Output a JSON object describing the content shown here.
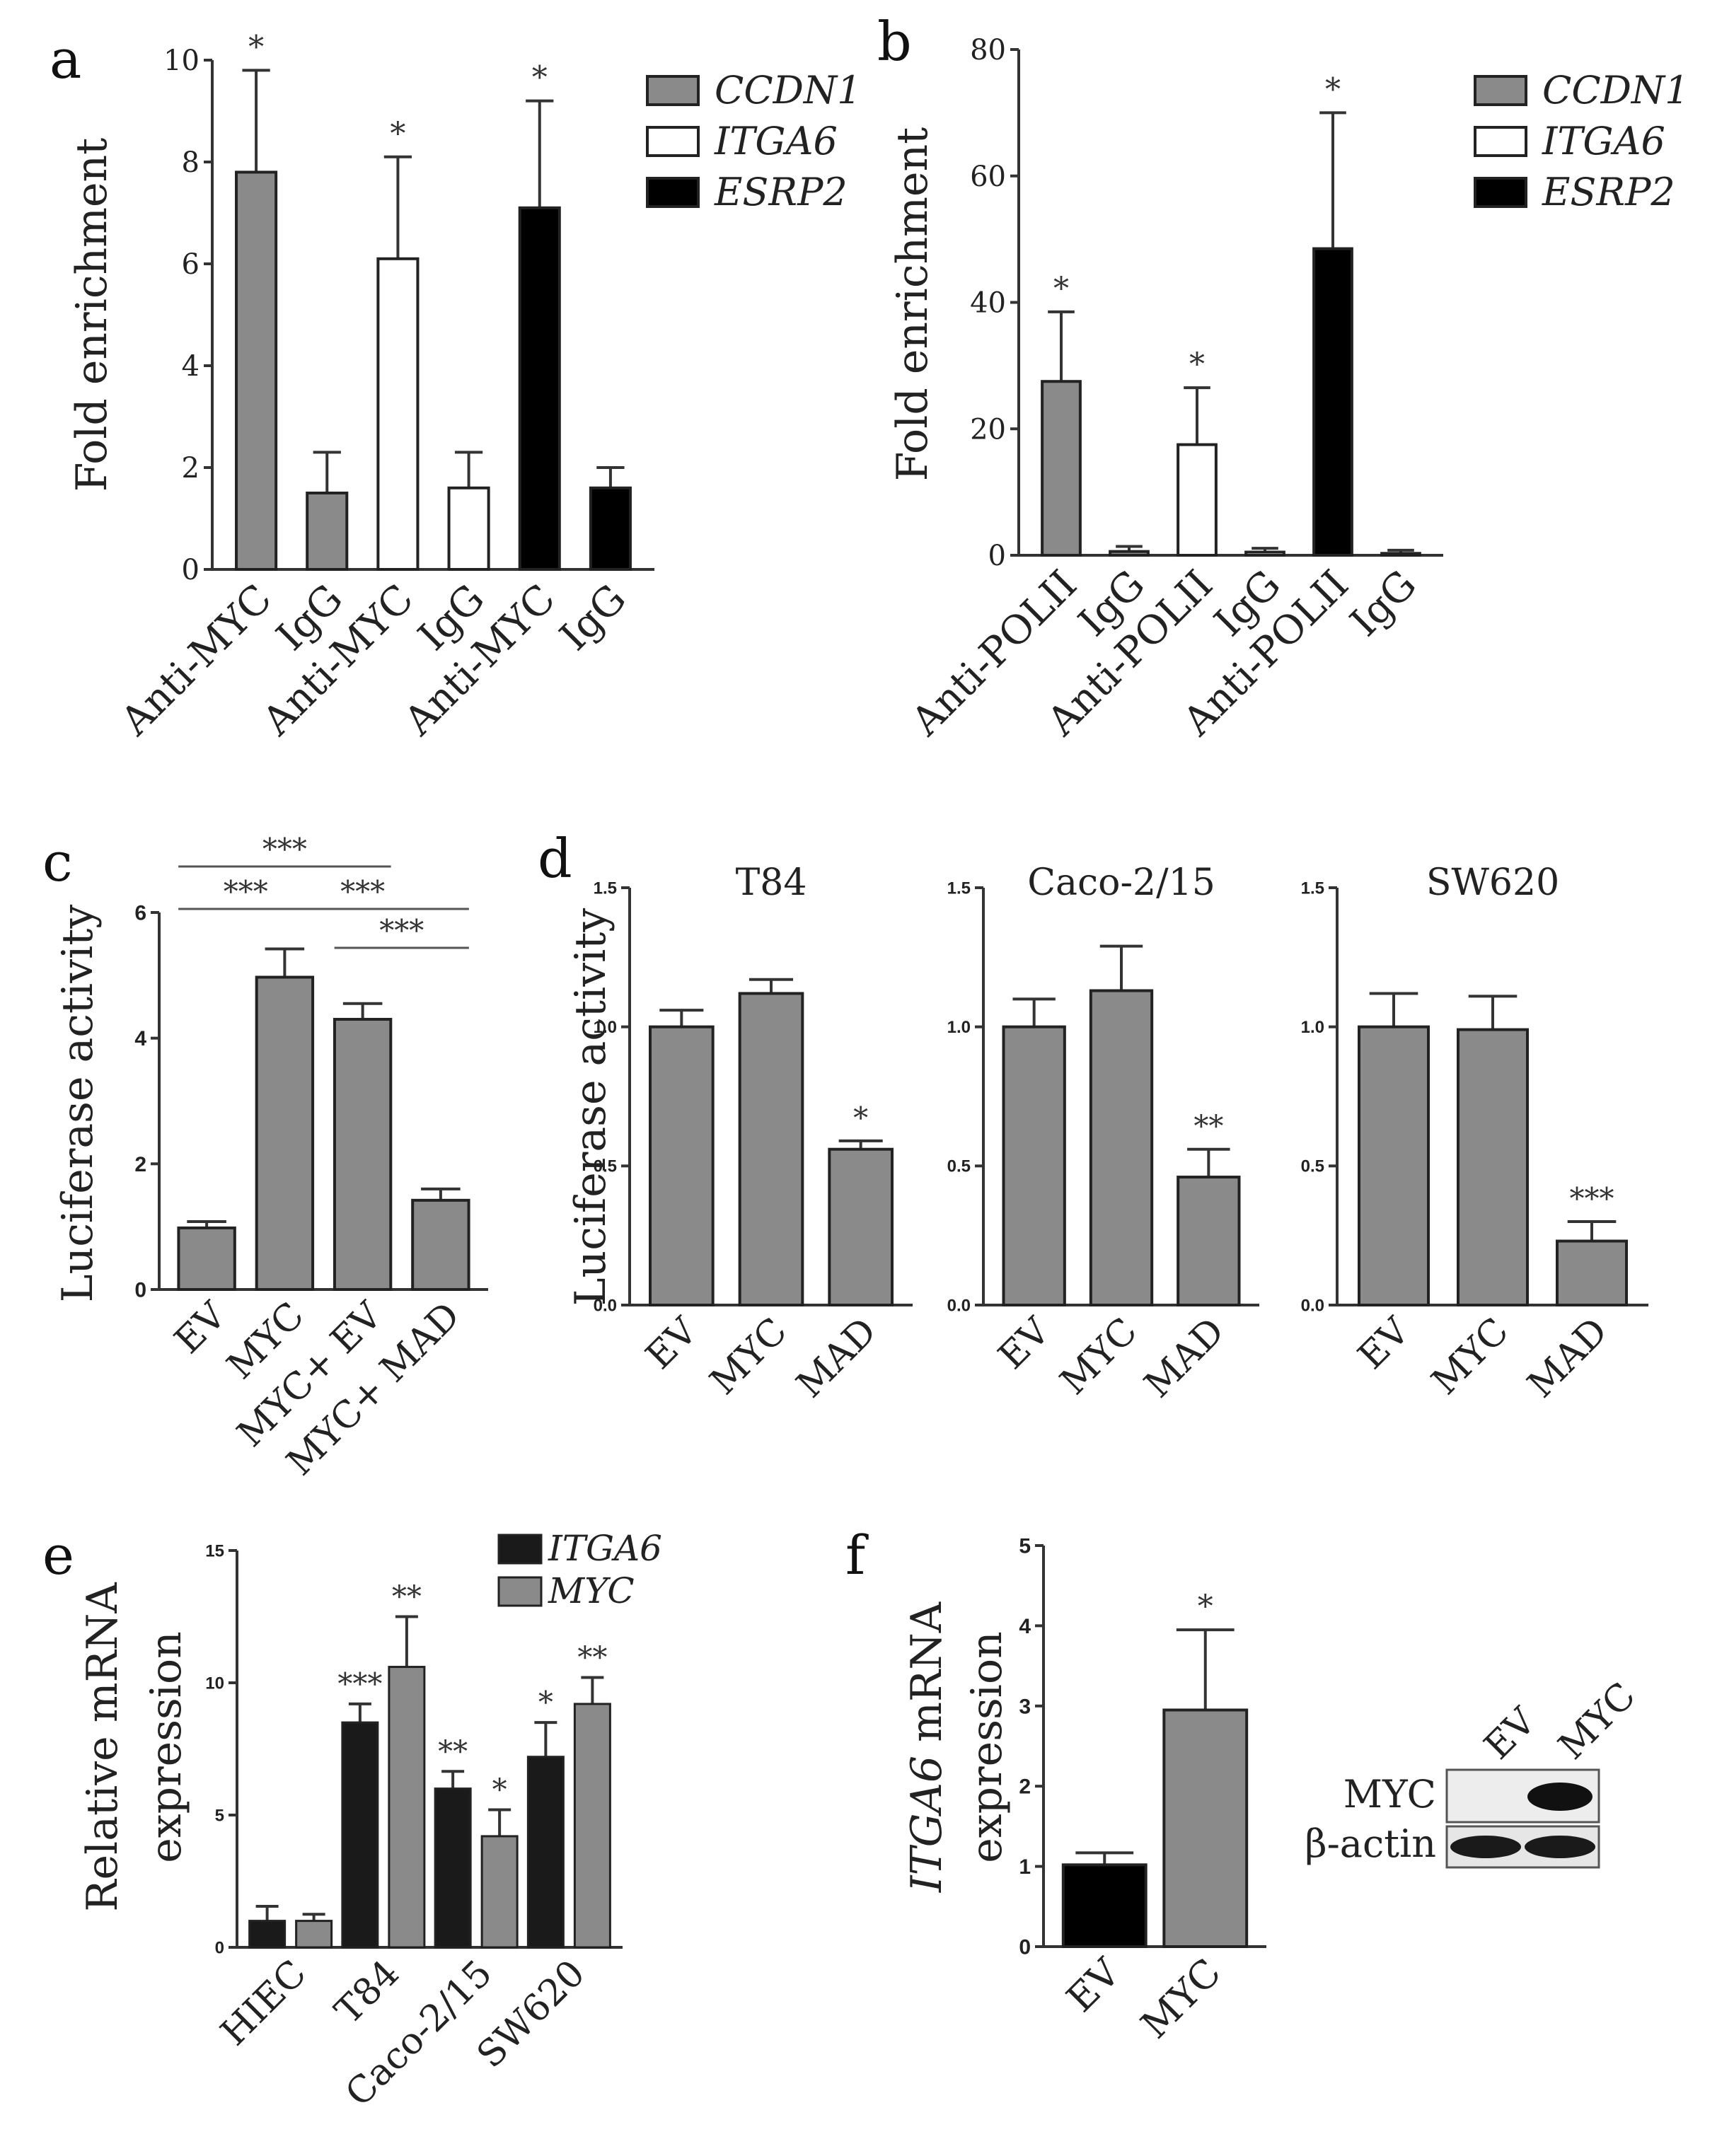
{
  "chart_data": [
    {
      "panel": "a",
      "type": "bar",
      "ylabel": "Fold enrichment",
      "ylim": [
        0,
        10
      ],
      "ticks": [
        "0",
        "2",
        "4",
        "6",
        "8",
        "10"
      ],
      "tickValues": [
        0,
        2,
        4,
        6,
        8,
        10
      ],
      "categories": [
        "Anti-MYC",
        "IgG",
        "Anti-MYC",
        "IgG",
        "Anti-MYC",
        "IgG"
      ],
      "values": [
        7.8,
        1.5,
        6.1,
        1.6,
        7.1,
        1.6
      ],
      "errors": [
        2.0,
        0.8,
        2.0,
        0.7,
        2.1,
        0.4
      ],
      "colors": [
        "#8a8a8a",
        "#8a8a8a",
        "#ffffff",
        "#ffffff",
        "#000000",
        "#000000"
      ],
      "significance": [
        "*",
        "",
        "*",
        "",
        "*",
        ""
      ],
      "legend": [
        {
          "label": "CCDN1",
          "color": "#8a8a8a"
        },
        {
          "label": "ITGA6",
          "color": "#ffffff"
        },
        {
          "label": "ESRP2",
          "color": "#000000"
        }
      ]
    },
    {
      "panel": "b",
      "type": "bar",
      "ylabel": "Fold enrichment",
      "ylim": [
        0,
        80
      ],
      "ticks": [
        "0",
        "20",
        "40",
        "60",
        "80"
      ],
      "tickValues": [
        0,
        20,
        40,
        60,
        80
      ],
      "categories": [
        "Anti-POLII",
        "IgG",
        "Anti-POLII",
        "IgG",
        "Anti-POLII",
        "IgG"
      ],
      "values": [
        27.5,
        0.6,
        17.5,
        0.5,
        48.5,
        0.3
      ],
      "errors": [
        11,
        0.8,
        9,
        0.6,
        21.5,
        0.5
      ],
      "colors": [
        "#8a8a8a",
        "#8a8a8a",
        "#ffffff",
        "#ffffff",
        "#000000",
        "#000000"
      ],
      "significance": [
        "*",
        "",
        "*",
        "",
        "*",
        ""
      ],
      "legend": [
        {
          "label": "CCDN1",
          "color": "#8a8a8a"
        },
        {
          "label": "ITGA6",
          "color": "#ffffff"
        },
        {
          "label": "ESRP2",
          "color": "#000000"
        }
      ]
    },
    {
      "panel": "c",
      "type": "bar",
      "ylabel": "Luciferase activity",
      "ylim": [
        0,
        6
      ],
      "ticks": [
        "0",
        "2",
        "4",
        "6"
      ],
      "tickValues": [
        0,
        2,
        4,
        6
      ],
      "categories": [
        "EV",
        "MYC",
        "MYC+ EV",
        "MYC+ MAD"
      ],
      "values": [
        0.98,
        4.97,
        4.3,
        1.42
      ],
      "errors": [
        0.1,
        0.45,
        0.25,
        0.18
      ],
      "colors": [
        "#8a8a8a",
        "#8a8a8a",
        "#8a8a8a",
        "#8a8a8a"
      ],
      "comparisons": [
        {
          "from": 0,
          "to": 2,
          "label": "***"
        },
        {
          "from": 0,
          "to": 1,
          "label": "***"
        },
        {
          "from": 1,
          "to": 3,
          "label": "***"
        },
        {
          "from": 2,
          "to": 3,
          "label": "***"
        }
      ]
    },
    {
      "panel": "d",
      "type": "bar",
      "ylabel": "Luciferase activity",
      "subtitle": "T84",
      "ylim": [
        0,
        1.5
      ],
      "ticks": [
        "0.0",
        "0.5",
        "1.0",
        "1.5"
      ],
      "tickValues": [
        0,
        0.5,
        1.0,
        1.5
      ],
      "categories": [
        "EV",
        "MYC",
        "MAD"
      ],
      "values": [
        1.0,
        1.12,
        0.56
      ],
      "errors": [
        0.06,
        0.05,
        0.03
      ],
      "colors": [
        "#8a8a8a",
        "#8a8a8a",
        "#8a8a8a"
      ],
      "significance": [
        "",
        "",
        "*"
      ]
    },
    {
      "panel": "",
      "type": "bar",
      "subtitle": "Caco-2/15",
      "ylim": [
        0,
        1.5
      ],
      "ticks": [
        "0.0",
        "0.5",
        "1.0",
        "1.5"
      ],
      "tickValues": [
        0,
        0.5,
        1.0,
        1.5
      ],
      "categories": [
        "EV",
        "MYC",
        "MAD"
      ],
      "values": [
        1.0,
        1.13,
        0.46
      ],
      "errors": [
        0.1,
        0.16,
        0.1
      ],
      "colors": [
        "#8a8a8a",
        "#8a8a8a",
        "#8a8a8a"
      ],
      "significance": [
        "",
        "",
        "**"
      ]
    },
    {
      "panel": "",
      "type": "bar",
      "subtitle": "SW620",
      "ylim": [
        0,
        1.5
      ],
      "ticks": [
        "0.0",
        "0.5",
        "1.0",
        "1.5"
      ],
      "tickValues": [
        0,
        0.5,
        1.0,
        1.5
      ],
      "categories": [
        "EV",
        "MYC",
        "MAD"
      ],
      "values": [
        1.0,
        0.99,
        0.23
      ],
      "errors": [
        0.12,
        0.12,
        0.07
      ],
      "colors": [
        "#8a8a8a",
        "#8a8a8a",
        "#8a8a8a"
      ],
      "significance": [
        "",
        "",
        "***"
      ]
    },
    {
      "panel": "e",
      "type": "bar",
      "ylabel": "Relative mRNA",
      "ylabel2": "expression",
      "ylim": [
        0,
        15
      ],
      "ticks": [
        "0",
        "5",
        "10",
        "15"
      ],
      "tickValues": [
        0,
        5,
        10,
        15
      ],
      "categories": [
        "HIEC",
        "T84",
        "Caco-2/15",
        "SW620"
      ],
      "series": [
        {
          "name": "ITGA6",
          "color": "#1a1a1a",
          "values": [
            1.0,
            8.5,
            6.0,
            7.2
          ],
          "errors": [
            0.55,
            0.7,
            0.65,
            1.3
          ],
          "significance": [
            "",
            "***",
            "**",
            "*"
          ]
        },
        {
          "name": "MYC",
          "color": "#8a8a8a",
          "values": [
            1.0,
            10.6,
            4.2,
            9.2
          ],
          "errors": [
            0.25,
            1.9,
            1.0,
            1.0
          ],
          "significance": [
            "",
            "**",
            "*",
            "**"
          ]
        }
      ]
    },
    {
      "panel": "f",
      "type": "bar",
      "ylabel_italic": "ITGA6",
      "ylabel_rest": " mRNA",
      "ylabel2": "expression",
      "ylim": [
        0,
        5
      ],
      "ticks": [
        "0",
        "1",
        "2",
        "3",
        "4",
        "5"
      ],
      "tickValues": [
        0,
        1,
        2,
        3,
        4,
        5
      ],
      "categories": [
        "EV",
        "MYC"
      ],
      "values": [
        1.02,
        2.95
      ],
      "errors": [
        0.15,
        1.0
      ],
      "colors": [
        "#000000",
        "#8a8a8a"
      ],
      "significance": [
        "",
        "*"
      ]
    }
  ],
  "panel_labels": [
    "a",
    "b",
    "c",
    "d",
    "e",
    "f"
  ],
  "blot": {
    "lanes": [
      "EV",
      "MYC"
    ],
    "rows": [
      "MYC",
      "β-actin"
    ]
  }
}
